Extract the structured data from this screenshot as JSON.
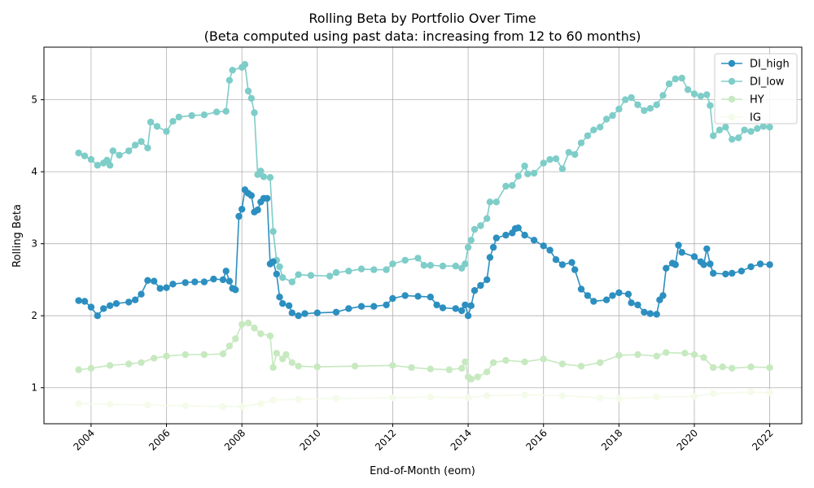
{
  "chart_data": {
    "type": "line",
    "title": "Rolling Beta by Portfolio Over Time",
    "subtitle": "(Beta computed using past data: increasing from 12 to 60 months)",
    "xlabel": "End-of-Month (eom)",
    "ylabel": "Rolling Beta",
    "xlim": [
      2002.75,
      2022.85
    ],
    "ylim": [
      0.5,
      5.73
    ],
    "x_ticks": [
      2004,
      2006,
      2008,
      2010,
      2012,
      2014,
      2016,
      2018,
      2020,
      2022
    ],
    "x_tick_labels": [
      "2004",
      "2006",
      "2008",
      "2010",
      "2012",
      "2014",
      "2016",
      "2018",
      "2020",
      "2022"
    ],
    "y_ticks": [
      1,
      2,
      3,
      4,
      5
    ],
    "y_tick_labels": [
      "1",
      "2",
      "3",
      "4",
      "5"
    ],
    "grid": true,
    "legend_position": "top-right",
    "series": [
      {
        "name": "DI_high",
        "color": "#2c8fc0",
        "points": [
          [
            2003.67,
            2.21
          ],
          [
            2003.83,
            2.2
          ],
          [
            2004.0,
            2.12
          ],
          [
            2004.17,
            2.0
          ],
          [
            2004.33,
            2.1
          ],
          [
            2004.5,
            2.14
          ],
          [
            2004.67,
            2.17
          ],
          [
            2005.0,
            2.19
          ],
          [
            2005.17,
            2.22
          ],
          [
            2005.33,
            2.3
          ],
          [
            2005.5,
            2.49
          ],
          [
            2005.67,
            2.48
          ],
          [
            2005.83,
            2.38
          ],
          [
            2006.0,
            2.39
          ],
          [
            2006.17,
            2.44
          ],
          [
            2006.5,
            2.46
          ],
          [
            2006.75,
            2.47
          ],
          [
            2007.0,
            2.47
          ],
          [
            2007.25,
            2.51
          ],
          [
            2007.5,
            2.5
          ],
          [
            2007.58,
            2.62
          ],
          [
            2007.67,
            2.48
          ],
          [
            2007.75,
            2.38
          ],
          [
            2007.83,
            2.36
          ],
          [
            2007.92,
            3.38
          ],
          [
            2008.0,
            3.48
          ],
          [
            2008.08,
            3.75
          ],
          [
            2008.17,
            3.7
          ],
          [
            2008.25,
            3.67
          ],
          [
            2008.33,
            3.44
          ],
          [
            2008.42,
            3.47
          ],
          [
            2008.5,
            3.58
          ],
          [
            2008.58,
            3.63
          ],
          [
            2008.67,
            3.63
          ],
          [
            2008.75,
            2.72
          ],
          [
            2008.83,
            2.75
          ],
          [
            2008.92,
            2.58
          ],
          [
            2009.0,
            2.26
          ],
          [
            2009.08,
            2.17
          ],
          [
            2009.25,
            2.14
          ],
          [
            2009.33,
            2.04
          ],
          [
            2009.5,
            2.0
          ],
          [
            2009.67,
            2.03
          ],
          [
            2010.0,
            2.04
          ],
          [
            2010.5,
            2.05
          ],
          [
            2010.83,
            2.1
          ],
          [
            2011.17,
            2.13
          ],
          [
            2011.5,
            2.13
          ],
          [
            2011.83,
            2.15
          ],
          [
            2012.0,
            2.24
          ],
          [
            2012.33,
            2.28
          ],
          [
            2012.67,
            2.27
          ],
          [
            2013.0,
            2.26
          ],
          [
            2013.17,
            2.15
          ],
          [
            2013.33,
            2.11
          ],
          [
            2013.67,
            2.1
          ],
          [
            2013.83,
            2.07
          ],
          [
            2013.92,
            2.15
          ],
          [
            2014.0,
            2.0
          ],
          [
            2014.08,
            2.14
          ],
          [
            2014.17,
            2.35
          ],
          [
            2014.33,
            2.42
          ],
          [
            2014.5,
            2.5
          ],
          [
            2014.58,
            2.81
          ],
          [
            2014.67,
            2.95
          ],
          [
            2014.75,
            3.08
          ],
          [
            2015.0,
            3.12
          ],
          [
            2015.17,
            3.15
          ],
          [
            2015.25,
            3.21
          ],
          [
            2015.33,
            3.22
          ],
          [
            2015.5,
            3.12
          ],
          [
            2015.75,
            3.05
          ],
          [
            2016.0,
            2.97
          ],
          [
            2016.17,
            2.91
          ],
          [
            2016.33,
            2.78
          ],
          [
            2016.5,
            2.71
          ],
          [
            2016.75,
            2.74
          ],
          [
            2016.83,
            2.64
          ],
          [
            2017.0,
            2.37
          ],
          [
            2017.17,
            2.28
          ],
          [
            2017.33,
            2.2
          ],
          [
            2017.67,
            2.22
          ],
          [
            2017.83,
            2.28
          ],
          [
            2018.0,
            2.32
          ],
          [
            2018.25,
            2.3
          ],
          [
            2018.33,
            2.18
          ],
          [
            2018.5,
            2.15
          ],
          [
            2018.67,
            2.05
          ],
          [
            2018.83,
            2.03
          ],
          [
            2019.0,
            2.02
          ],
          [
            2019.08,
            2.22
          ],
          [
            2019.17,
            2.28
          ],
          [
            2019.25,
            2.66
          ],
          [
            2019.42,
            2.73
          ],
          [
            2019.5,
            2.71
          ],
          [
            2019.58,
            2.98
          ],
          [
            2019.67,
            2.88
          ],
          [
            2020.0,
            2.82
          ],
          [
            2020.17,
            2.75
          ],
          [
            2020.25,
            2.71
          ],
          [
            2020.33,
            2.93
          ],
          [
            2020.42,
            2.72
          ],
          [
            2020.5,
            2.59
          ],
          [
            2020.83,
            2.58
          ],
          [
            2021.0,
            2.59
          ],
          [
            2021.25,
            2.62
          ],
          [
            2021.5,
            2.68
          ],
          [
            2021.75,
            2.72
          ],
          [
            2022.0,
            2.71
          ]
        ]
      },
      {
        "name": "DI_low",
        "color": "#7ecdc8",
        "points": [
          [
            2003.67,
            4.26
          ],
          [
            2003.83,
            4.22
          ],
          [
            2004.0,
            4.17
          ],
          [
            2004.17,
            4.09
          ],
          [
            2004.33,
            4.12
          ],
          [
            2004.42,
            4.16
          ],
          [
            2004.5,
            4.09
          ],
          [
            2004.58,
            4.29
          ],
          [
            2004.75,
            4.23
          ],
          [
            2005.0,
            4.29
          ],
          [
            2005.17,
            4.37
          ],
          [
            2005.33,
            4.42
          ],
          [
            2005.5,
            4.33
          ],
          [
            2005.58,
            4.69
          ],
          [
            2005.75,
            4.63
          ],
          [
            2006.0,
            4.56
          ],
          [
            2006.17,
            4.7
          ],
          [
            2006.33,
            4.76
          ],
          [
            2006.67,
            4.78
          ],
          [
            2007.0,
            4.79
          ],
          [
            2007.33,
            4.83
          ],
          [
            2007.58,
            4.84
          ],
          [
            2007.67,
            5.27
          ],
          [
            2007.75,
            5.41
          ],
          [
            2008.0,
            5.45
          ],
          [
            2008.08,
            5.49
          ],
          [
            2008.17,
            5.12
          ],
          [
            2008.25,
            5.02
          ],
          [
            2008.33,
            4.82
          ],
          [
            2008.42,
            3.96
          ],
          [
            2008.5,
            4.01
          ],
          [
            2008.58,
            3.93
          ],
          [
            2008.75,
            3.92
          ],
          [
            2008.83,
            3.17
          ],
          [
            2008.92,
            2.77
          ],
          [
            2009.0,
            2.68
          ],
          [
            2009.08,
            2.53
          ],
          [
            2009.33,
            2.47
          ],
          [
            2009.5,
            2.57
          ],
          [
            2009.83,
            2.56
          ],
          [
            2010.33,
            2.55
          ],
          [
            2010.5,
            2.6
          ],
          [
            2010.83,
            2.62
          ],
          [
            2011.17,
            2.65
          ],
          [
            2011.5,
            2.64
          ],
          [
            2011.83,
            2.64
          ],
          [
            2012.0,
            2.72
          ],
          [
            2012.33,
            2.77
          ],
          [
            2012.67,
            2.8
          ],
          [
            2012.83,
            2.7
          ],
          [
            2013.0,
            2.7
          ],
          [
            2013.33,
            2.69
          ],
          [
            2013.67,
            2.69
          ],
          [
            2013.83,
            2.66
          ],
          [
            2013.92,
            2.72
          ],
          [
            2014.0,
            2.95
          ],
          [
            2014.08,
            3.05
          ],
          [
            2014.17,
            3.2
          ],
          [
            2014.33,
            3.25
          ],
          [
            2014.5,
            3.35
          ],
          [
            2014.58,
            3.58
          ],
          [
            2014.75,
            3.58
          ],
          [
            2015.0,
            3.8
          ],
          [
            2015.17,
            3.81
          ],
          [
            2015.33,
            3.94
          ],
          [
            2015.5,
            4.08
          ],
          [
            2015.58,
            3.97
          ],
          [
            2015.75,
            3.98
          ],
          [
            2016.0,
            4.12
          ],
          [
            2016.17,
            4.17
          ],
          [
            2016.33,
            4.18
          ],
          [
            2016.5,
            4.04
          ],
          [
            2016.67,
            4.27
          ],
          [
            2016.83,
            4.24
          ],
          [
            2017.0,
            4.4
          ],
          [
            2017.17,
            4.5
          ],
          [
            2017.33,
            4.58
          ],
          [
            2017.5,
            4.62
          ],
          [
            2017.67,
            4.73
          ],
          [
            2017.83,
            4.78
          ],
          [
            2018.0,
            4.87
          ],
          [
            2018.17,
            5.0
          ],
          [
            2018.33,
            5.03
          ],
          [
            2018.5,
            4.93
          ],
          [
            2018.67,
            4.85
          ],
          [
            2018.83,
            4.88
          ],
          [
            2019.0,
            4.93
          ],
          [
            2019.17,
            5.06
          ],
          [
            2019.33,
            5.22
          ],
          [
            2019.5,
            5.29
          ],
          [
            2019.67,
            5.3
          ],
          [
            2019.83,
            5.14
          ],
          [
            2020.0,
            5.08
          ],
          [
            2020.17,
            5.05
          ],
          [
            2020.33,
            5.07
          ],
          [
            2020.42,
            4.92
          ],
          [
            2020.5,
            4.5
          ],
          [
            2020.67,
            4.58
          ],
          [
            2020.83,
            4.62
          ],
          [
            2021.0,
            4.45
          ],
          [
            2021.17,
            4.47
          ],
          [
            2021.33,
            4.58
          ],
          [
            2021.5,
            4.56
          ],
          [
            2021.67,
            4.6
          ],
          [
            2021.83,
            4.63
          ],
          [
            2022.0,
            4.62
          ]
        ]
      },
      {
        "name": "HY",
        "color": "#c7e9c0",
        "points": [
          [
            2003.67,
            1.25
          ],
          [
            2004.0,
            1.27
          ],
          [
            2004.5,
            1.31
          ],
          [
            2005.0,
            1.33
          ],
          [
            2005.33,
            1.35
          ],
          [
            2005.67,
            1.41
          ],
          [
            2006.0,
            1.44
          ],
          [
            2006.5,
            1.46
          ],
          [
            2007.0,
            1.46
          ],
          [
            2007.5,
            1.47
          ],
          [
            2007.67,
            1.58
          ],
          [
            2007.83,
            1.68
          ],
          [
            2008.0,
            1.88
          ],
          [
            2008.17,
            1.9
          ],
          [
            2008.33,
            1.83
          ],
          [
            2008.5,
            1.75
          ],
          [
            2008.75,
            1.72
          ],
          [
            2008.83,
            1.28
          ],
          [
            2008.92,
            1.48
          ],
          [
            2009.08,
            1.4
          ],
          [
            2009.17,
            1.46
          ],
          [
            2009.33,
            1.35
          ],
          [
            2009.5,
            1.3
          ],
          [
            2010.0,
            1.29
          ],
          [
            2011.0,
            1.3
          ],
          [
            2012.0,
            1.31
          ],
          [
            2012.5,
            1.28
          ],
          [
            2013.0,
            1.26
          ],
          [
            2013.5,
            1.25
          ],
          [
            2013.83,
            1.27
          ],
          [
            2013.92,
            1.36
          ],
          [
            2014.0,
            1.15
          ],
          [
            2014.08,
            1.12
          ],
          [
            2014.25,
            1.15
          ],
          [
            2014.5,
            1.22
          ],
          [
            2014.67,
            1.35
          ],
          [
            2015.0,
            1.38
          ],
          [
            2015.5,
            1.36
          ],
          [
            2016.0,
            1.4
          ],
          [
            2016.5,
            1.33
          ],
          [
            2017.0,
            1.3
          ],
          [
            2017.5,
            1.35
          ],
          [
            2018.0,
            1.45
          ],
          [
            2018.5,
            1.46
          ],
          [
            2019.0,
            1.44
          ],
          [
            2019.25,
            1.49
          ],
          [
            2019.75,
            1.48
          ],
          [
            2020.0,
            1.46
          ],
          [
            2020.25,
            1.42
          ],
          [
            2020.5,
            1.28
          ],
          [
            2020.75,
            1.29
          ],
          [
            2021.0,
            1.27
          ],
          [
            2021.5,
            1.29
          ],
          [
            2022.0,
            1.28
          ]
        ]
      },
      {
        "name": "IG",
        "color": "#f4fbe9",
        "points": [
          [
            2003.67,
            0.78
          ],
          [
            2004.5,
            0.77
          ],
          [
            2005.5,
            0.76
          ],
          [
            2006.5,
            0.75
          ],
          [
            2007.5,
            0.74
          ],
          [
            2008.0,
            0.74
          ],
          [
            2008.5,
            0.78
          ],
          [
            2008.83,
            0.83
          ],
          [
            2009.5,
            0.84
          ],
          [
            2010.5,
            0.85
          ],
          [
            2012.0,
            0.86
          ],
          [
            2013.0,
            0.87
          ],
          [
            2014.0,
            0.86
          ],
          [
            2014.5,
            0.89
          ],
          [
            2015.5,
            0.9
          ],
          [
            2016.5,
            0.89
          ],
          [
            2017.5,
            0.86
          ],
          [
            2018.0,
            0.85
          ],
          [
            2019.0,
            0.87
          ],
          [
            2020.0,
            0.88
          ],
          [
            2020.5,
            0.92
          ],
          [
            2021.5,
            0.94
          ],
          [
            2022.0,
            0.93
          ]
        ]
      }
    ]
  }
}
